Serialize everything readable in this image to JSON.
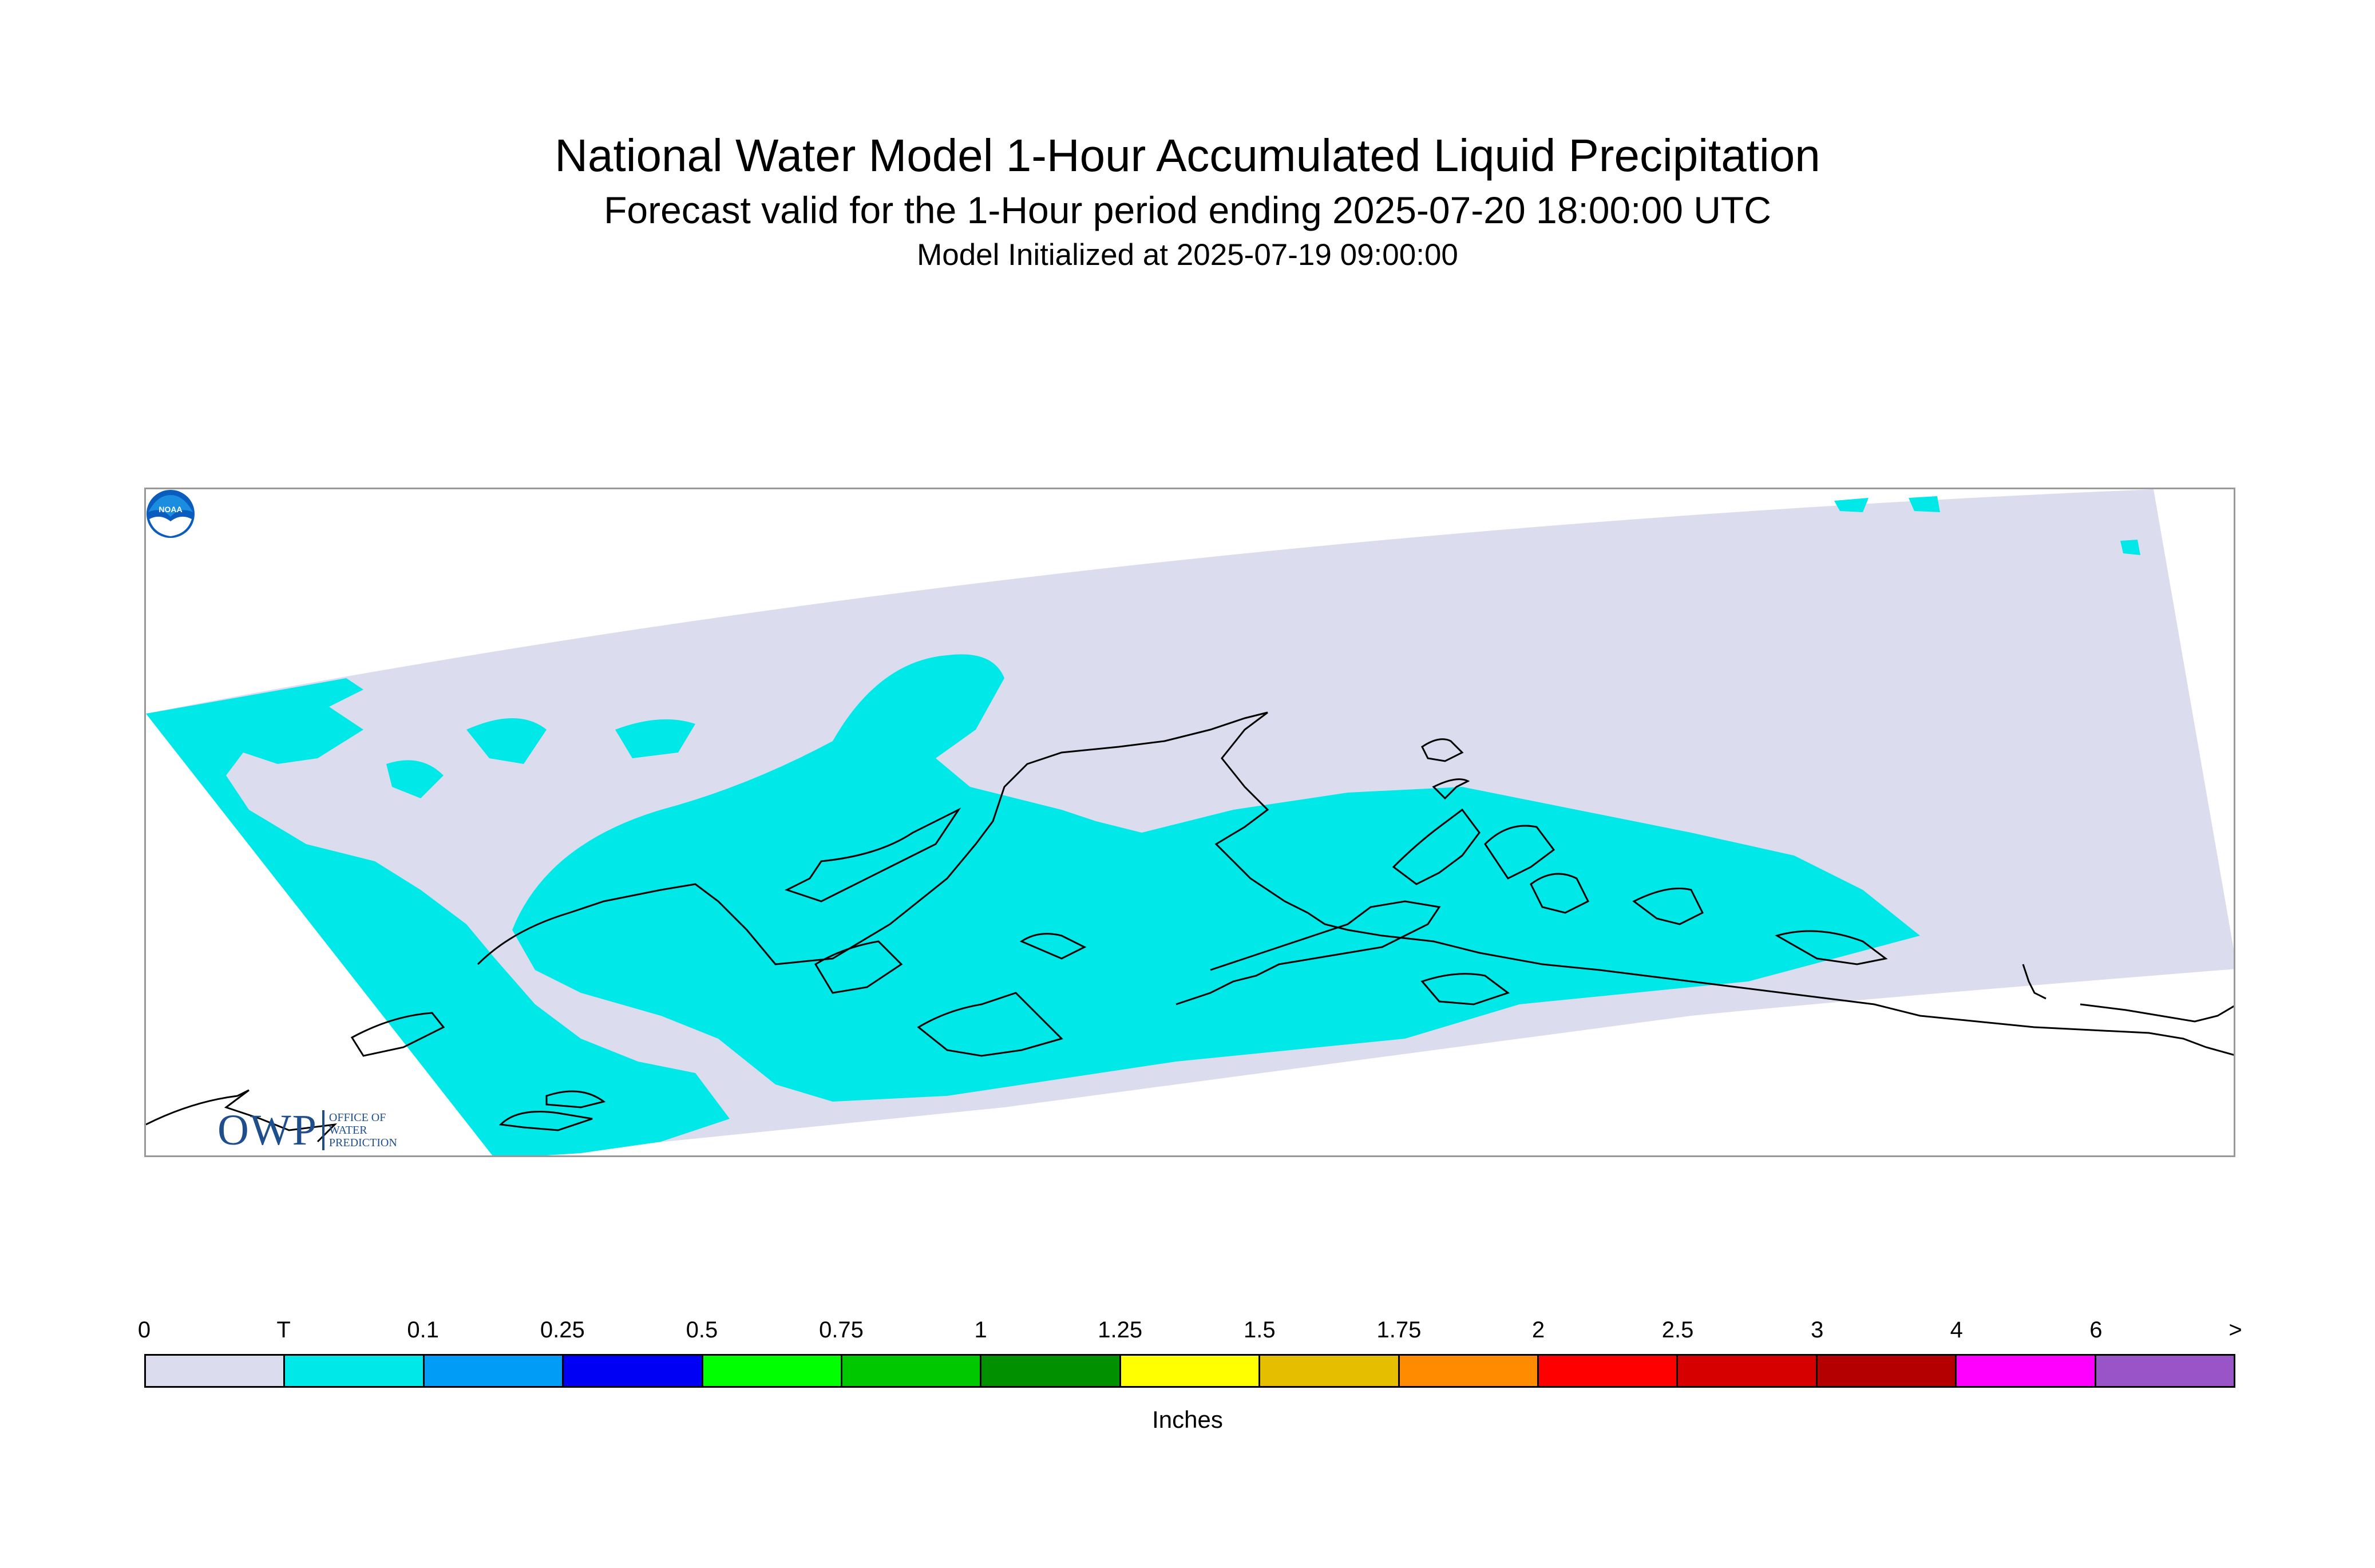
{
  "header": {
    "title": "National Water Model 1-Hour Accumulated Liquid Precipitation",
    "subtitle": "Forecast valid for the 1-Hour period ending 2025-07-20 18:00:00 UTC",
    "init_line": "Model Initialized at 2025-07-19 09:00:00"
  },
  "map": {
    "colors": {
      "domain_zero": "#dcdcef",
      "trace": "#00e8e8",
      "coastline": "#000000",
      "frame": "#999999"
    }
  },
  "logos": {
    "owp": {
      "letters": "OWP",
      "text": "OFFICE OF\nWATER\nPREDICTION"
    },
    "noaa": {
      "text": "NOAA"
    }
  },
  "legend": {
    "tick_labels": [
      "0",
      "T",
      "0.1",
      "0.25",
      "0.5",
      "0.75",
      "1",
      "1.25",
      "1.5",
      "1.75",
      "2",
      "2.5",
      "3",
      "4",
      "6",
      ">"
    ],
    "colors": [
      "#dcdcef",
      "#00e8e8",
      "#009cf5",
      "#0000f5",
      "#00ff00",
      "#00c800",
      "#009000",
      "#ffff00",
      "#e6be00",
      "#ff8c00",
      "#ff0000",
      "#d70000",
      "#b40000",
      "#ff00ff",
      "#9955c8"
    ],
    "units": "Inches"
  }
}
